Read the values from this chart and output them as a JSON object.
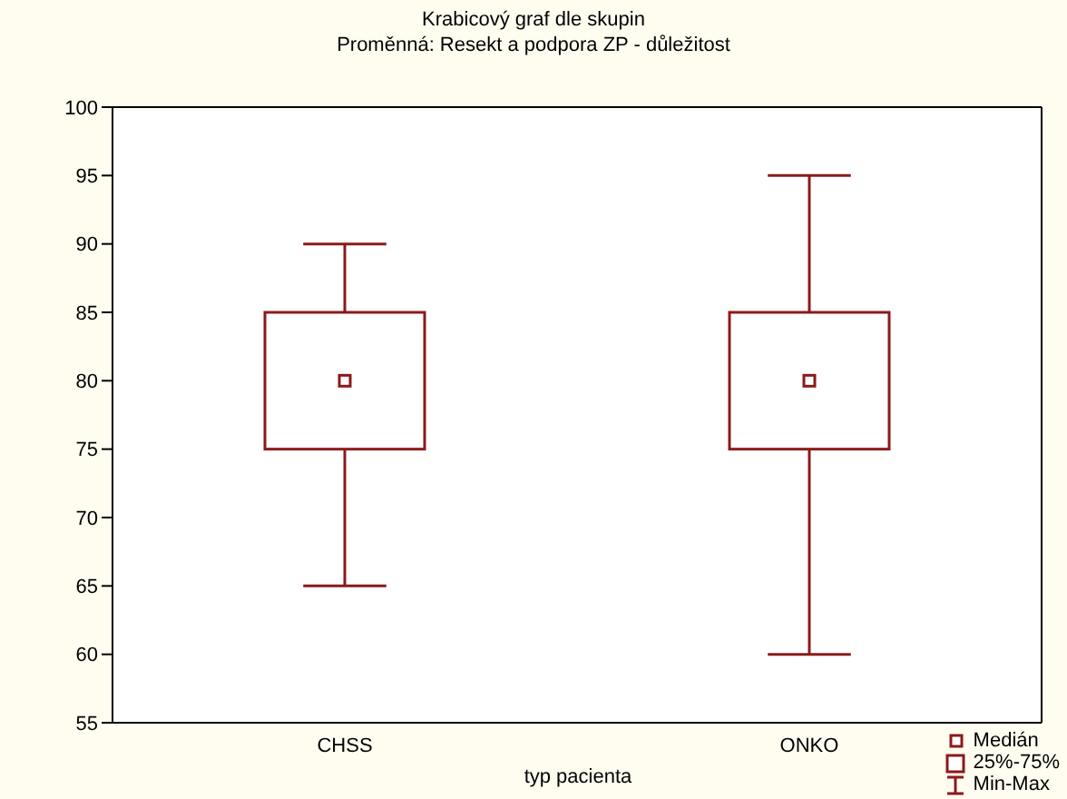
{
  "chart_data": {
    "type": "box",
    "title": "Krabicový graf dle skupin",
    "subtitle": "Proměnná: Resekt a podpora ZP - důležitost",
    "xlabel": "typ pacienta",
    "categories": [
      "CHSS",
      "ONKO"
    ],
    "boxes": [
      {
        "low": 65,
        "q1": 75,
        "median": 80,
        "q3": 85,
        "high": 90
      },
      {
        "low": 60,
        "q1": 75,
        "median": 80,
        "q3": 85,
        "high": 95
      }
    ],
    "color": "#8b1a1a",
    "ylim": [
      55,
      100
    ],
    "yticks": [
      55,
      60,
      65,
      70,
      75,
      80,
      85,
      90,
      95,
      100
    ],
    "grid": false,
    "marker": "square",
    "annotations": [
      "Medián",
      "25%-75%",
      "Min-Max"
    ]
  }
}
